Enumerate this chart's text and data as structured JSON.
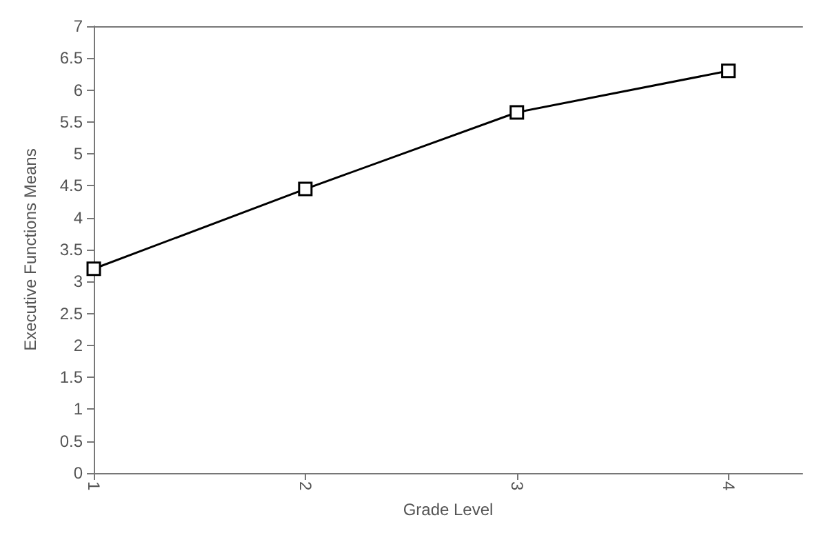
{
  "chart_data": {
    "type": "line",
    "xlabel": "Grade Level",
    "ylabel": "Executive Functions Means",
    "x": [
      1,
      2,
      3,
      4
    ],
    "values": [
      3.2,
      4.45,
      5.65,
      6.3
    ],
    "color": "#000000",
    "xlim": [
      1,
      4.35
    ],
    "xticks": [
      1,
      2,
      3,
      4
    ],
    "ylim": [
      0,
      7
    ],
    "yticks": [
      0,
      0.5,
      1,
      1.5,
      2,
      2.5,
      3,
      3.5,
      4,
      4.5,
      5,
      5.5,
      6,
      6.5,
      7
    ],
    "marker": "square",
    "line_style": "solid",
    "grid": false
  }
}
